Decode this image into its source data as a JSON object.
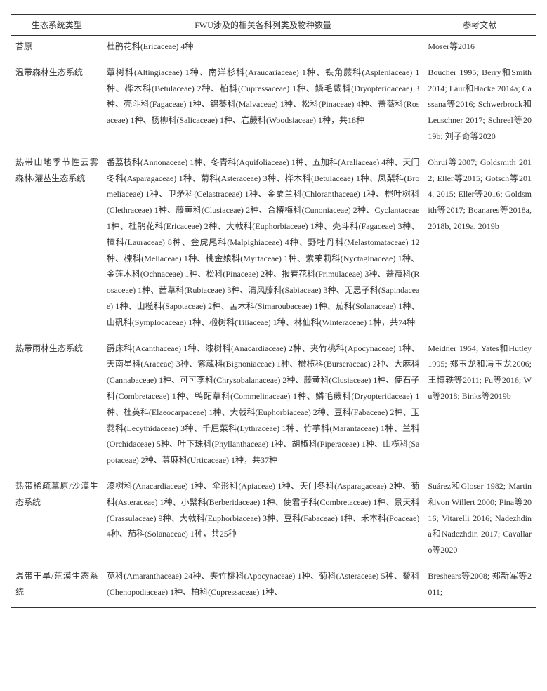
{
  "header": {
    "col1": "生态系统类型",
    "col2": "FWU涉及的相关各科列类及物种数量",
    "col3": "参考文献"
  },
  "rows": [
    {
      "eco": "苔原",
      "fwu": "杜鹃花科(Ericaceae) 4种",
      "ref": "Moser等2016"
    },
    {
      "eco": "温带森林生态系统",
      "fwu": "蕈树科(Altingiaceae) 1种、南洋杉科(Araucariaceae) 1种、铁角蕨科(Aspleniaceae) 1种、桦木科(Betulaceae) 2种、柏科(Cupressaceae) 1种、鳞毛蕨科(Dryopteridaceae) 3种、壳斗科(Fagaceae) 1种、锦葵科(Malvaceae) 1种、松科(Pinaceae) 4种、蔷薇科(Rosaceae) 1种、杨柳科(Salicaceae) 1种、岩蕨科(Woodsiaceae) 1种，共18种",
      "ref": "Boucher 1995; Berry和Smith 2014; Laur和Hacke 2014a; Cassana等2016; Schwerbrock和Leuschner 2017; Schreel等2019b; 刘子奇等2020"
    },
    {
      "eco": "热带山地季节性云雾森林/灌丛生态系统",
      "fwu": "番荔枝科(Annonaceae) 1种、冬青科(Aquifoliaceae) 1种、五加科(Araliaceae) 4种、天门冬科(Asparagaceae) 1种、菊科(Asteraceae) 3种、桦木科(Betulaceae) 1种、凤梨科(Bromeliaceae) 1种、卫矛科(Celastraceae) 1种、金粟兰科(Chloranthaceae) 1种、桤叶树科(Clethraceae) 1种、藤黄科(Clusiaceae) 2种、合椿梅科(Cunoniaceae) 2种、Cyclantaceae 1种、杜鹃花科(Ericaceae) 2种、大戟科(Euphorbiaceae) 1种、壳斗科(Fagaceae) 3种、樟科(Lauraceae) 8种、金虎尾科(Malpighiaceae) 4种、野牡丹科(Melastomataceae) 12种、楝科(Meliaceae) 1种、桃金娘科(Myrtaceae) 1种、紫茉莉科(Nyctaginaceae) 1种、金莲木科(Ochnaceae) 1种、松科(Pinaceae) 2种、报春花科(Primulaceae) 3种、蔷薇科(Rosaceae) 1种、茜草科(Rubiaceae) 3种、清风藤科(Sabiaceae) 3种、无忌子科(Sapindaceae) 1种、山榄科(Sapotaceae) 2种、苦木科(Simaroubaceae) 1种、茄科(Solanaceae) 1种、山矾科(Symplocaceae) 1种、椴树科(Tiliaceae) 1种、林仙科(Winteraceae) 1种，共74种",
      "ref": "Ohrui等2007; Goldsmith 2012; Eller等2015; Gotsch等2014, 2015; Eller等2016; Goldsmith等2017; Boanares等2018a, 2018b, 2019a, 2019b"
    },
    {
      "eco": "热带雨林生态系统",
      "fwu": "爵床科(Acanthaceae) 1种、漆树科(Anacardiaceae) 2种、夹竹桃科(Apocynaceae) 1种、天南星科(Araceae) 3种、紫葳科(Bignoniaceae) 1种、橄榄科(Burseraceae) 2种、大麻科(Cannabaceae) 1种、可可李科(Chrysobalanaceae) 2种、藤黄科(Clusiaceae) 1种、使石子科(Combretaceae) 1种、鸭跖草科(Commelinaceae) 1种、鳞毛蕨科(Dryopteridaceae) 1种、杜英科(Elaeocarpaceae) 1种、大戟科(Euphorbiaceae) 2种、豆科(Fabaceae) 2种、玉蕊科(Lecythidaceae) 3种、千屈菜科(Lythraceae) 1种、竹芋科(Marantaceae) 1种、兰科(Orchidaceae) 5种、叶下珠科(Phyllanthaceae) 1种、胡椒科(Piperaceae) 1种、山榄科(Sapotaceae) 2种、荨麻科(Urticaceae) 1种，共37种",
      "ref": "Meidner 1954; Yates和Hutley 1995; 郑玉龙和冯玉龙2006; 王博轶等2011; Fu等2016; Wu等2018; Binks等2019b"
    },
    {
      "eco": "热带稀疏草原/沙漠生态系统",
      "fwu": "漆树科(Anacardiaceae) 1种、伞形科(Apiaceae) 1种、天门冬科(Asparagaceae) 2种、菊科(Asteraceae) 1种、小檗科(Berberidaceae) 1种、使君子科(Combretaceae) 1种、景天科(Crassulaceae) 9种、大戟科(Euphorbiaceae) 3种、豆科(Fabaceae) 1种、禾本科(Poaceae) 4种、茄科(Solanaceae) 1种，共25种",
      "ref": "Suárez和Gloser 1982; Martin和von Willert 2000; Pina等2016; Vitarelli 2016; Nadezhdina和Nadezhdin 2017; Cavallaro等2020"
    },
    {
      "eco": "温带干旱/荒漠生态系统",
      "fwu": "苋科(Amaranthaceae) 24种、夹竹桃科(Apocynaceae) 1种、菊科(Asteraceae) 5种、藜科(Chenopodiaceae) 1种、柏科(Cupressaceae) 1种、",
      "ref": "Breshears等2008; 郑新军等2011;"
    }
  ]
}
